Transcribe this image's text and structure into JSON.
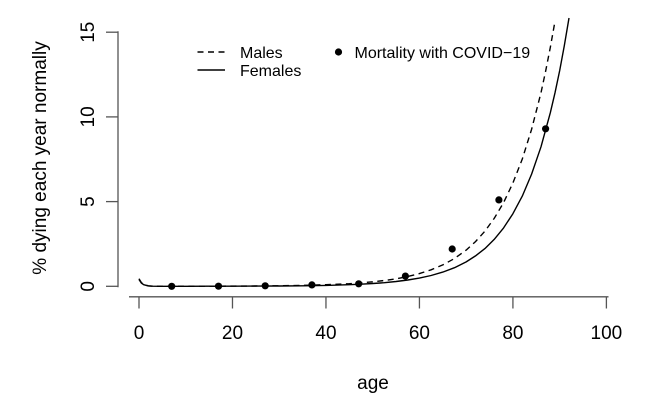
{
  "chart_data": {
    "type": "line",
    "title": "",
    "xlabel": "age",
    "ylabel": "% dying each year normally",
    "xlim": [
      0,
      100
    ],
    "ylim": [
      0,
      15
    ],
    "x_ticks": [
      0,
      20,
      40,
      60,
      80,
      100
    ],
    "y_ticks": [
      0,
      5,
      10,
      15
    ],
    "grid": false,
    "legend_position": "top-inside",
    "colors": {
      "foreground": "#000000",
      "axis": "#555555",
      "background": "#ffffff"
    },
    "legend": {
      "entries": [
        {
          "label": "Males",
          "style": "dashed-line"
        },
        {
          "label": "Females",
          "style": "solid-line"
        },
        {
          "label": "Mortality with COVID−19",
          "style": "filled-point"
        }
      ]
    },
    "series": [
      {
        "name": "Males",
        "type": "line",
        "line_style": "dashed",
        "x": [
          0,
          0.5,
          1,
          2,
          3,
          5,
          10,
          15,
          20,
          25,
          30,
          35,
          40,
          45,
          47.5,
          50,
          52.5,
          55,
          57.5,
          60,
          62.5,
          65,
          67.5,
          70,
          72,
          74,
          76,
          78,
          80,
          82,
          84,
          86,
          87,
          88,
          89
        ],
        "y": [
          0.45,
          0.222,
          0.109,
          0.028,
          0.008,
          0.0027,
          0.004,
          0.0067,
          0.0114,
          0.0192,
          0.0324,
          0.0547,
          0.0923,
          0.156,
          0.202,
          0.263,
          0.342,
          0.444,
          0.577,
          0.75,
          0.974,
          1.266,
          1.642,
          2.138,
          2.636,
          3.251,
          4.008,
          4.943,
          6.096,
          7.517,
          9.269,
          11.431,
          12.694,
          14.095,
          15.652
        ]
      },
      {
        "name": "Females",
        "type": "line",
        "line_style": "solid",
        "x": [
          0,
          0.5,
          1,
          2,
          3,
          5,
          10,
          15,
          20,
          25,
          30,
          35,
          40,
          45,
          47.5,
          50,
          52.5,
          55,
          57.5,
          60,
          62.5,
          65,
          67.5,
          70,
          72,
          74,
          76,
          78,
          80,
          82,
          84,
          86,
          88,
          89,
          90,
          91,
          92
        ],
        "y": [
          0.4,
          0.197,
          0.097,
          0.024,
          0.0065,
          0.0015,
          0.0021,
          0.0036,
          0.0062,
          0.0107,
          0.0184,
          0.0318,
          0.0548,
          0.0945,
          0.124,
          0.163,
          0.214,
          0.281,
          0.369,
          0.485,
          0.637,
          0.836,
          1.099,
          1.441,
          1.792,
          2.228,
          2.771,
          3.445,
          4.284,
          5.327,
          6.624,
          8.237,
          10.242,
          11.422,
          12.737,
          14.204,
          15.84
        ]
      },
      {
        "name": "Mortality with COVID−19",
        "type": "scatter",
        "x": [
          7,
          17,
          27,
          37,
          47,
          57,
          67,
          77,
          87
        ],
        "y": [
          0.002,
          0.006,
          0.03,
          0.08,
          0.15,
          0.6,
          2.2,
          5.1,
          9.3
        ]
      }
    ]
  }
}
